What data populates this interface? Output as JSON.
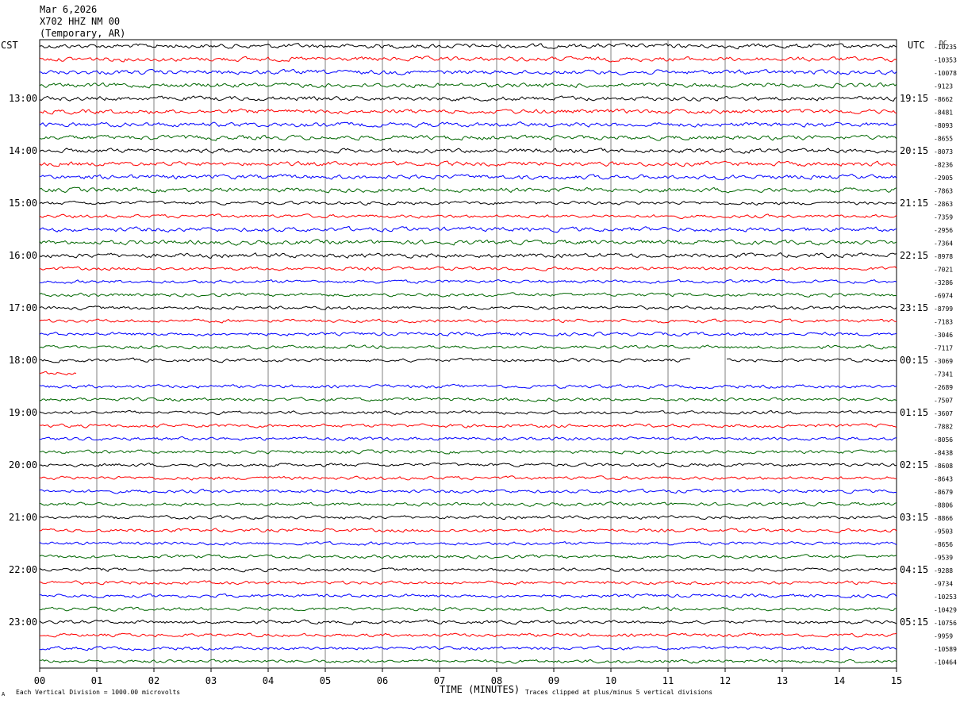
{
  "header": {
    "date": "Mar 6,2026",
    "station": "X702 HHZ NM 00",
    "network": "(Temporary, AR)"
  },
  "left_axis_label": "CST",
  "right_axis_label": "UTC",
  "dc_label": "DC",
  "x_axis": {
    "title": "TIME (MINUTES)",
    "ticks": [
      "00",
      "01",
      "02",
      "03",
      "04",
      "05",
      "06",
      "07",
      "08",
      "09",
      "10",
      "11",
      "12",
      "13",
      "14",
      "15"
    ]
  },
  "footer": {
    "corner_mark": "A",
    "left_note": "Each Vertical Division = 1000.00 microvolts",
    "right_note": "Traces clipped at plus/minus 5 vertical divisions"
  },
  "colors": {
    "trace_cycle": [
      "#000000",
      "#ff0000",
      "#0000ff",
      "#006600"
    ],
    "grid": "#808080"
  },
  "chart_data": {
    "type": "line",
    "title": "",
    "xlabel": "TIME (MINUTES)",
    "xlim": [
      0,
      15
    ],
    "rows_per_hour": 4,
    "left_hour_labels": [
      "13:00",
      "14:00",
      "15:00",
      "16:00",
      "17:00",
      "18:00",
      "19:00",
      "20:00",
      "21:00",
      "22:00",
      "23:00"
    ],
    "right_hour_labels": [
      "19:15",
      "20:15",
      "21:15",
      "22:15",
      "23:15",
      "00:15",
      "01:15",
      "02:15",
      "03:15",
      "04:15",
      "05:15"
    ],
    "dc_offsets": [
      "-10235",
      "-10353",
      "-10078",
      "-9123",
      "-8662",
      "-8481",
      "-8093",
      "-8655",
      "-8073",
      "-8236",
      "-2905",
      "-7863",
      "-2863",
      "-7359",
      "-2956",
      "-7364",
      "-8978",
      "-7021",
      "-3286",
      "-6974",
      "-8799",
      "-7183",
      "-3046",
      "-7117",
      "-3069",
      "-7341",
      "-2689",
      "-7507",
      "-3607",
      "-7882",
      "-8056",
      "-8438",
      "-8608",
      "-8643",
      "-8679",
      "-8806",
      "-8866",
      "-9503",
      "-8656",
      "-9539",
      "-9288",
      "-9734",
      "-10253",
      "-10429",
      "-10756",
      "-9959",
      "-10589",
      "-10464"
    ],
    "data_gaps": [
      {
        "row": 24,
        "from_min": 11.4,
        "to_min": 12.0
      },
      {
        "row": 25,
        "from_min": 0.65,
        "to_min": 15.0
      }
    ]
  }
}
